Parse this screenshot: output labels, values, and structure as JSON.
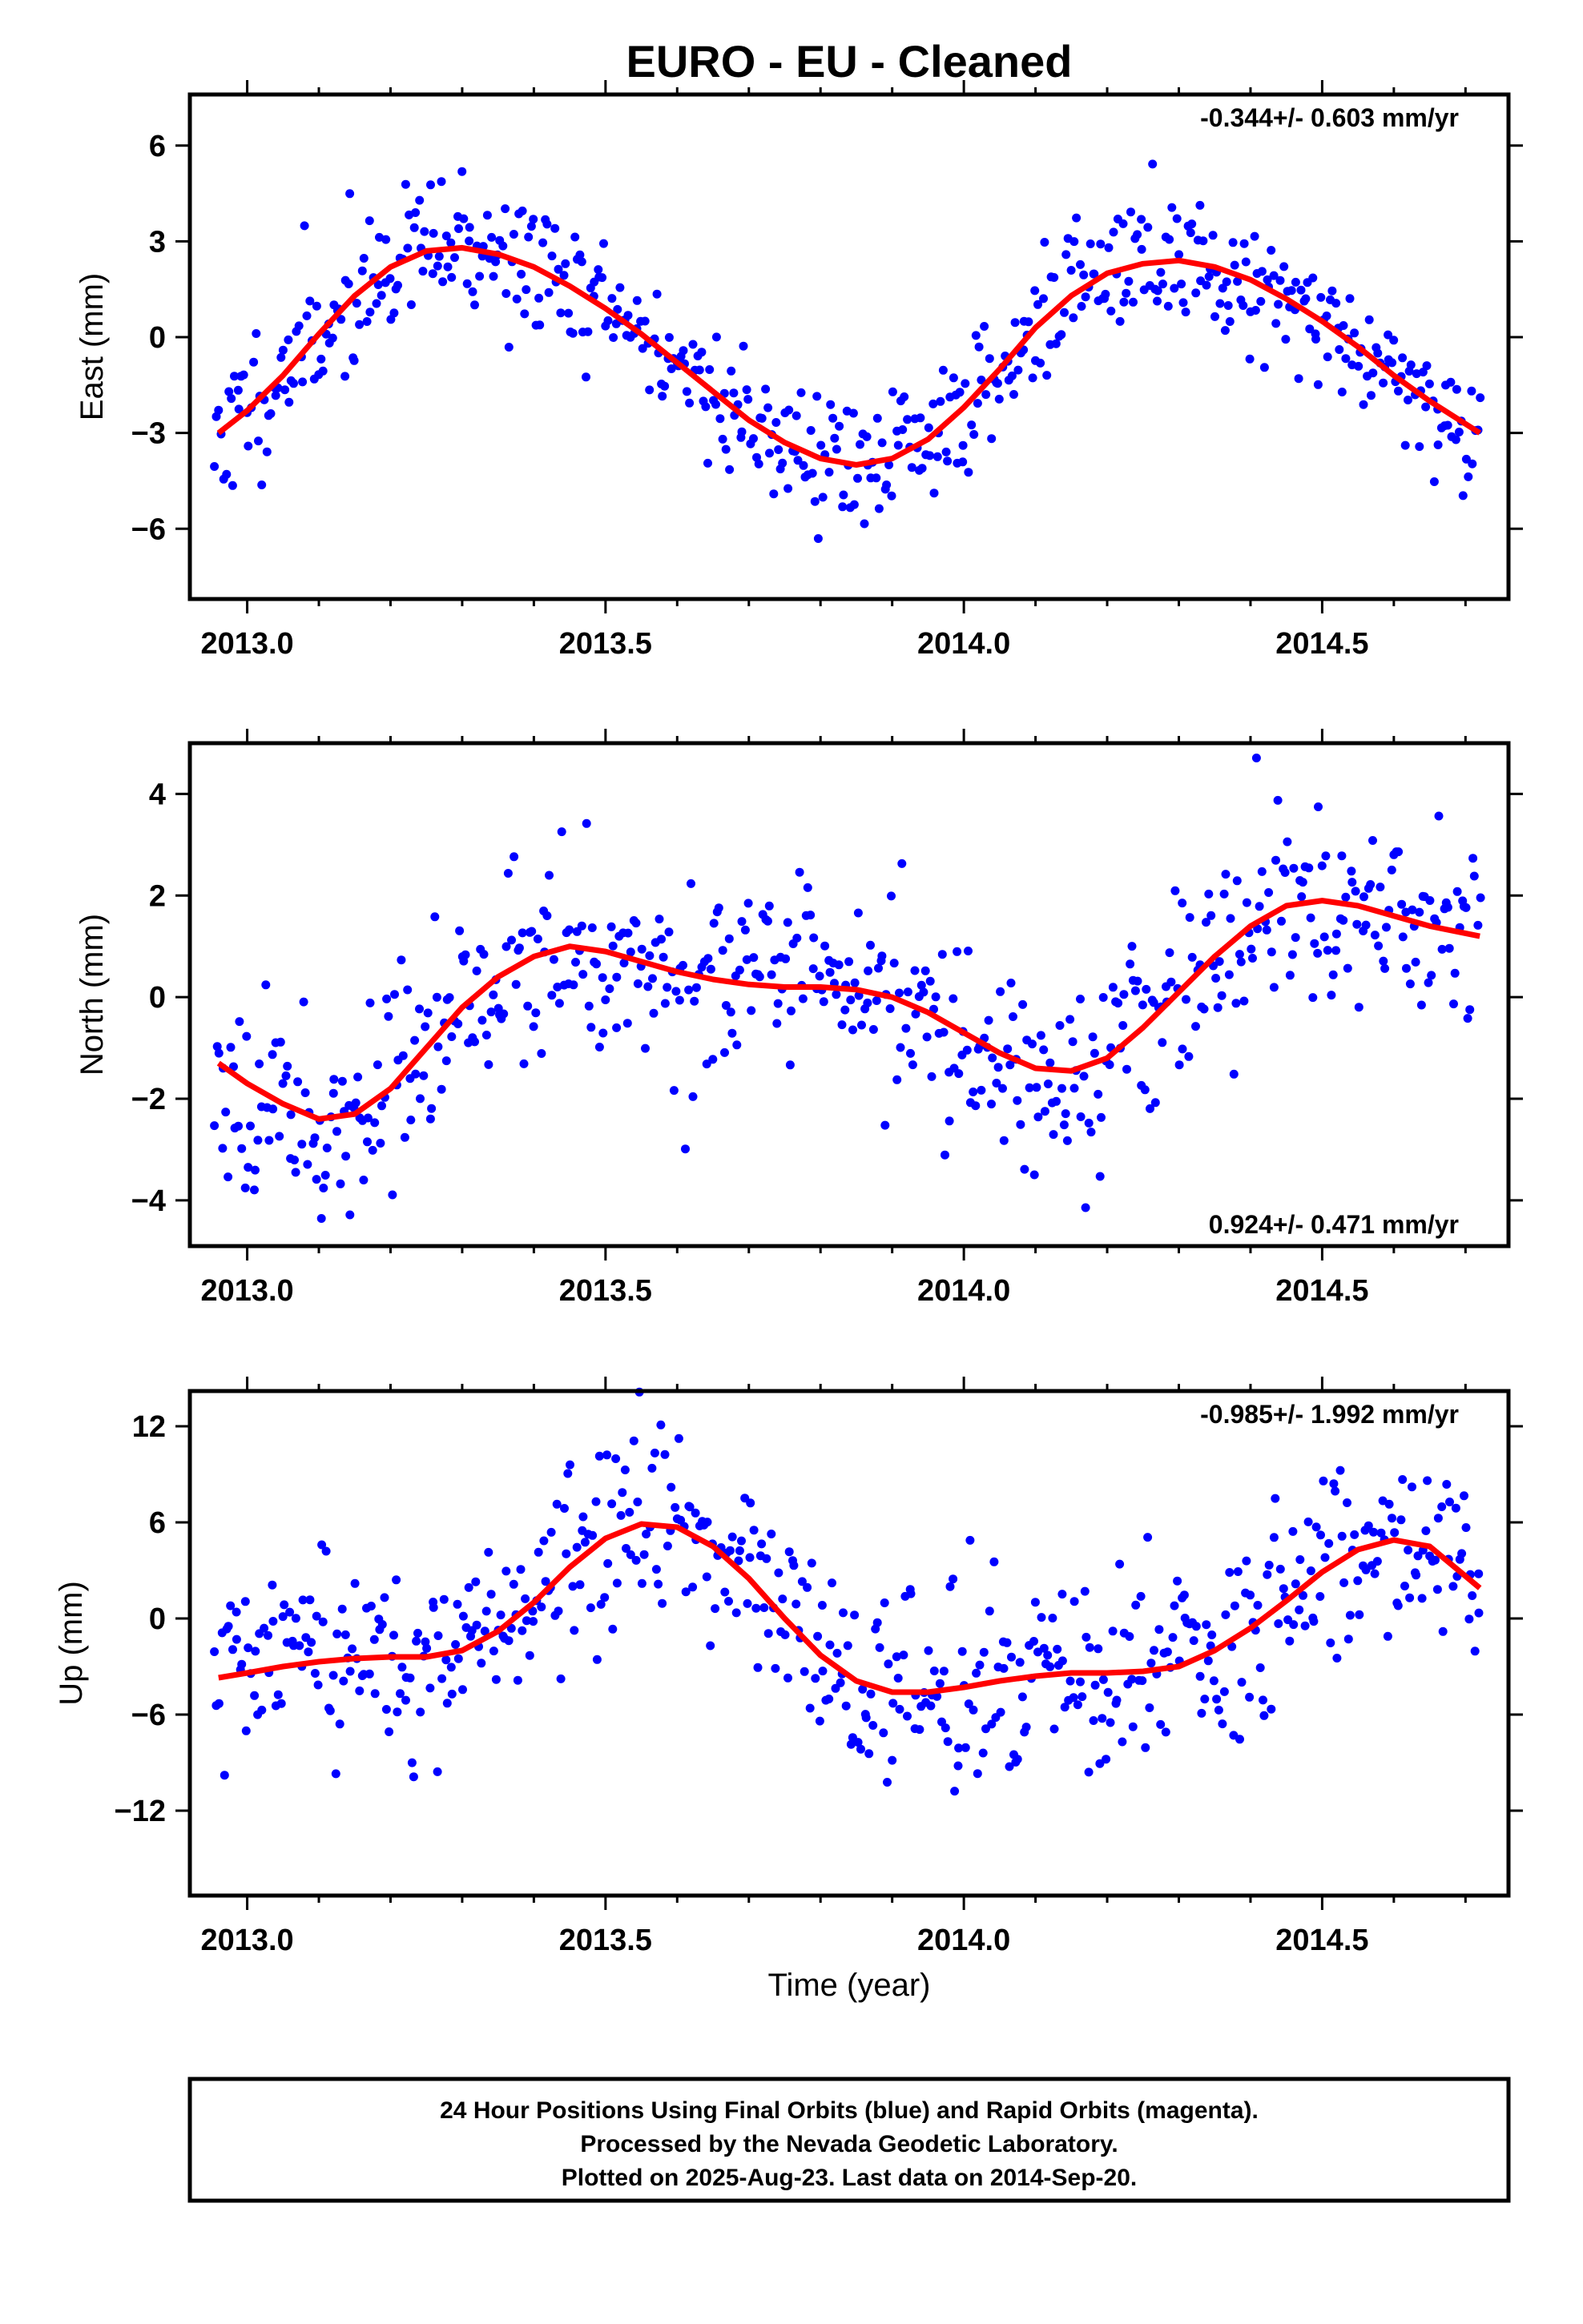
{
  "chart_title": "EURO  - EU - Cleaned",
  "xlabel": "Time (year)",
  "footer": {
    "line1": "24 Hour Positions Using Final Orbits (blue) and Rapid Orbits (magenta).",
    "line2": "Processed by the Nevada Geodetic Laboratory.",
    "line3": "Plotted on 2025-Aug-23. Last data on 2014-Sep-20."
  },
  "colors": {
    "points": "#0000ff",
    "fit": "#ff0000",
    "frame": "#000000"
  },
  "chart_data": [
    {
      "type": "scatter",
      "title": "EURO  - EU - Cleaned",
      "ylabel": "East (mm)",
      "rate": "-0.344+/- 0.603 mm/yr",
      "rate_position": "top-right",
      "xlim": [
        2012.92,
        2014.76
      ],
      "ylim": [
        -8.2,
        7.6
      ],
      "xticks": [
        2013.0,
        2013.5,
        2014.0,
        2014.5
      ],
      "xtick_labels": [
        "2013.0",
        "2013.5",
        "2014.0",
        "2014.5"
      ],
      "yticks": [
        -6,
        -3,
        0,
        3,
        6
      ],
      "ytick_labels": [
        "−6",
        "−3",
        "0",
        "3",
        "6"
      ],
      "fit_curve": {
        "x": [
          2012.96,
          2013.0,
          2013.05,
          2013.1,
          2013.15,
          2013.2,
          2013.25,
          2013.3,
          2013.35,
          2013.4,
          2013.45,
          2013.5,
          2013.55,
          2013.6,
          2013.65,
          2013.7,
          2013.75,
          2013.8,
          2013.85,
          2013.9,
          2013.95,
          2014.0,
          2014.05,
          2014.1,
          2014.15,
          2014.2,
          2014.25,
          2014.3,
          2014.35,
          2014.4,
          2014.45,
          2014.5,
          2014.55,
          2014.6,
          2014.65,
          2014.72
        ],
        "y": [
          -3.0,
          -2.3,
          -1.2,
          0.1,
          1.3,
          2.2,
          2.7,
          2.8,
          2.6,
          2.2,
          1.6,
          0.9,
          0.1,
          -0.8,
          -1.7,
          -2.6,
          -3.3,
          -3.8,
          -4.0,
          -3.8,
          -3.2,
          -2.2,
          -1.0,
          0.3,
          1.3,
          2.0,
          2.3,
          2.4,
          2.2,
          1.8,
          1.2,
          0.5,
          -0.3,
          -1.2,
          -2.0,
          -3.0
        ]
      },
      "points_model": {
        "amp1": 3.22,
        "phase1": 0.38,
        "amp2": 0.49,
        "phase2": 0.9,
        "offset": -0.31,
        "rate": -0.344,
        "noise": 1.1,
        "seed": 11
      }
    },
    {
      "type": "scatter",
      "ylabel": "North (mm)",
      "rate": "0.924+/- 0.471 mm/yr",
      "rate_position": "bottom-right",
      "xlim": [
        2012.92,
        2014.76
      ],
      "ylim": [
        -4.9,
        5.0
      ],
      "xticks": [
        2013.0,
        2013.5,
        2014.0,
        2014.5
      ],
      "xtick_labels": [
        "2013.0",
        "2013.5",
        "2014.0",
        "2014.5"
      ],
      "yticks": [
        -4,
        -2,
        0,
        2,
        4
      ],
      "ytick_labels": [
        "−4",
        "−2",
        "0",
        "2",
        "4"
      ],
      "fit_curve": {
        "x": [
          2012.96,
          2013.0,
          2013.05,
          2013.1,
          2013.15,
          2013.2,
          2013.25,
          2013.3,
          2013.35,
          2013.4,
          2013.45,
          2013.5,
          2013.55,
          2013.6,
          2013.65,
          2013.7,
          2013.75,
          2013.8,
          2013.85,
          2013.9,
          2013.95,
          2014.0,
          2014.05,
          2014.1,
          2014.15,
          2014.2,
          2014.25,
          2014.3,
          2014.35,
          2014.4,
          2014.45,
          2014.5,
          2014.55,
          2014.6,
          2014.65,
          2014.72
        ],
        "y": [
          -1.3,
          -1.7,
          -2.1,
          -2.4,
          -2.3,
          -1.8,
          -1.0,
          -0.2,
          0.4,
          0.8,
          1.0,
          0.9,
          0.7,
          0.5,
          0.35,
          0.25,
          0.2,
          0.2,
          0.15,
          0.0,
          -0.3,
          -0.7,
          -1.1,
          -1.4,
          -1.45,
          -1.2,
          -0.6,
          0.1,
          0.8,
          1.4,
          1.8,
          1.9,
          1.8,
          1.6,
          1.4,
          1.2
        ]
      },
      "points_model": {
        "amp1": 1.1,
        "phase1": 0.55,
        "amp2": 0.6,
        "phase2": 0.3,
        "offset": -0.2,
        "rate": 0.924,
        "noise": 0.95,
        "seed": 23
      }
    },
    {
      "type": "scatter",
      "ylabel": "Up (mm)",
      "rate": "-0.985+/- 1.992 mm/yr",
      "rate_position": "top-right",
      "xlim": [
        2012.92,
        2014.76
      ],
      "ylim": [
        -17.3,
        14.2
      ],
      "xticks": [
        2013.0,
        2013.5,
        2014.0,
        2014.5
      ],
      "xtick_labels": [
        "2013.0",
        "2013.5",
        "2014.0",
        "2014.5"
      ],
      "yticks": [
        -12,
        -6,
        0,
        6,
        12
      ],
      "ytick_labels": [
        "−12",
        "−6",
        "0",
        "6",
        "12"
      ],
      "fit_curve": {
        "x": [
          2012.96,
          2013.0,
          2013.05,
          2013.1,
          2013.15,
          2013.2,
          2013.25,
          2013.3,
          2013.35,
          2013.4,
          2013.45,
          2013.5,
          2013.55,
          2013.6,
          2013.65,
          2013.7,
          2013.75,
          2013.8,
          2013.85,
          2013.9,
          2013.95,
          2014.0,
          2014.05,
          2014.1,
          2014.15,
          2014.2,
          2014.25,
          2014.3,
          2014.35,
          2014.4,
          2014.45,
          2014.5,
          2014.55,
          2014.6,
          2014.65,
          2014.72
        ],
        "y": [
          -3.7,
          -3.4,
          -3.0,
          -2.7,
          -2.5,
          -2.4,
          -2.4,
          -2.0,
          -0.8,
          1.0,
          3.2,
          5.0,
          5.9,
          5.7,
          4.5,
          2.5,
          0.0,
          -2.3,
          -3.9,
          -4.6,
          -4.6,
          -4.3,
          -3.9,
          -3.6,
          -3.4,
          -3.4,
          -3.3,
          -3.0,
          -2.0,
          -0.6,
          1.1,
          2.9,
          4.3,
          4.9,
          4.5,
          1.9
        ]
      },
      "points_model": {
        "amp1": 4.2,
        "phase1": 0.35,
        "amp2": 2.4,
        "phase2": 0.2,
        "offset": -0.4,
        "rate": -0.985,
        "noise": 3.0,
        "seed": 37
      }
    }
  ]
}
